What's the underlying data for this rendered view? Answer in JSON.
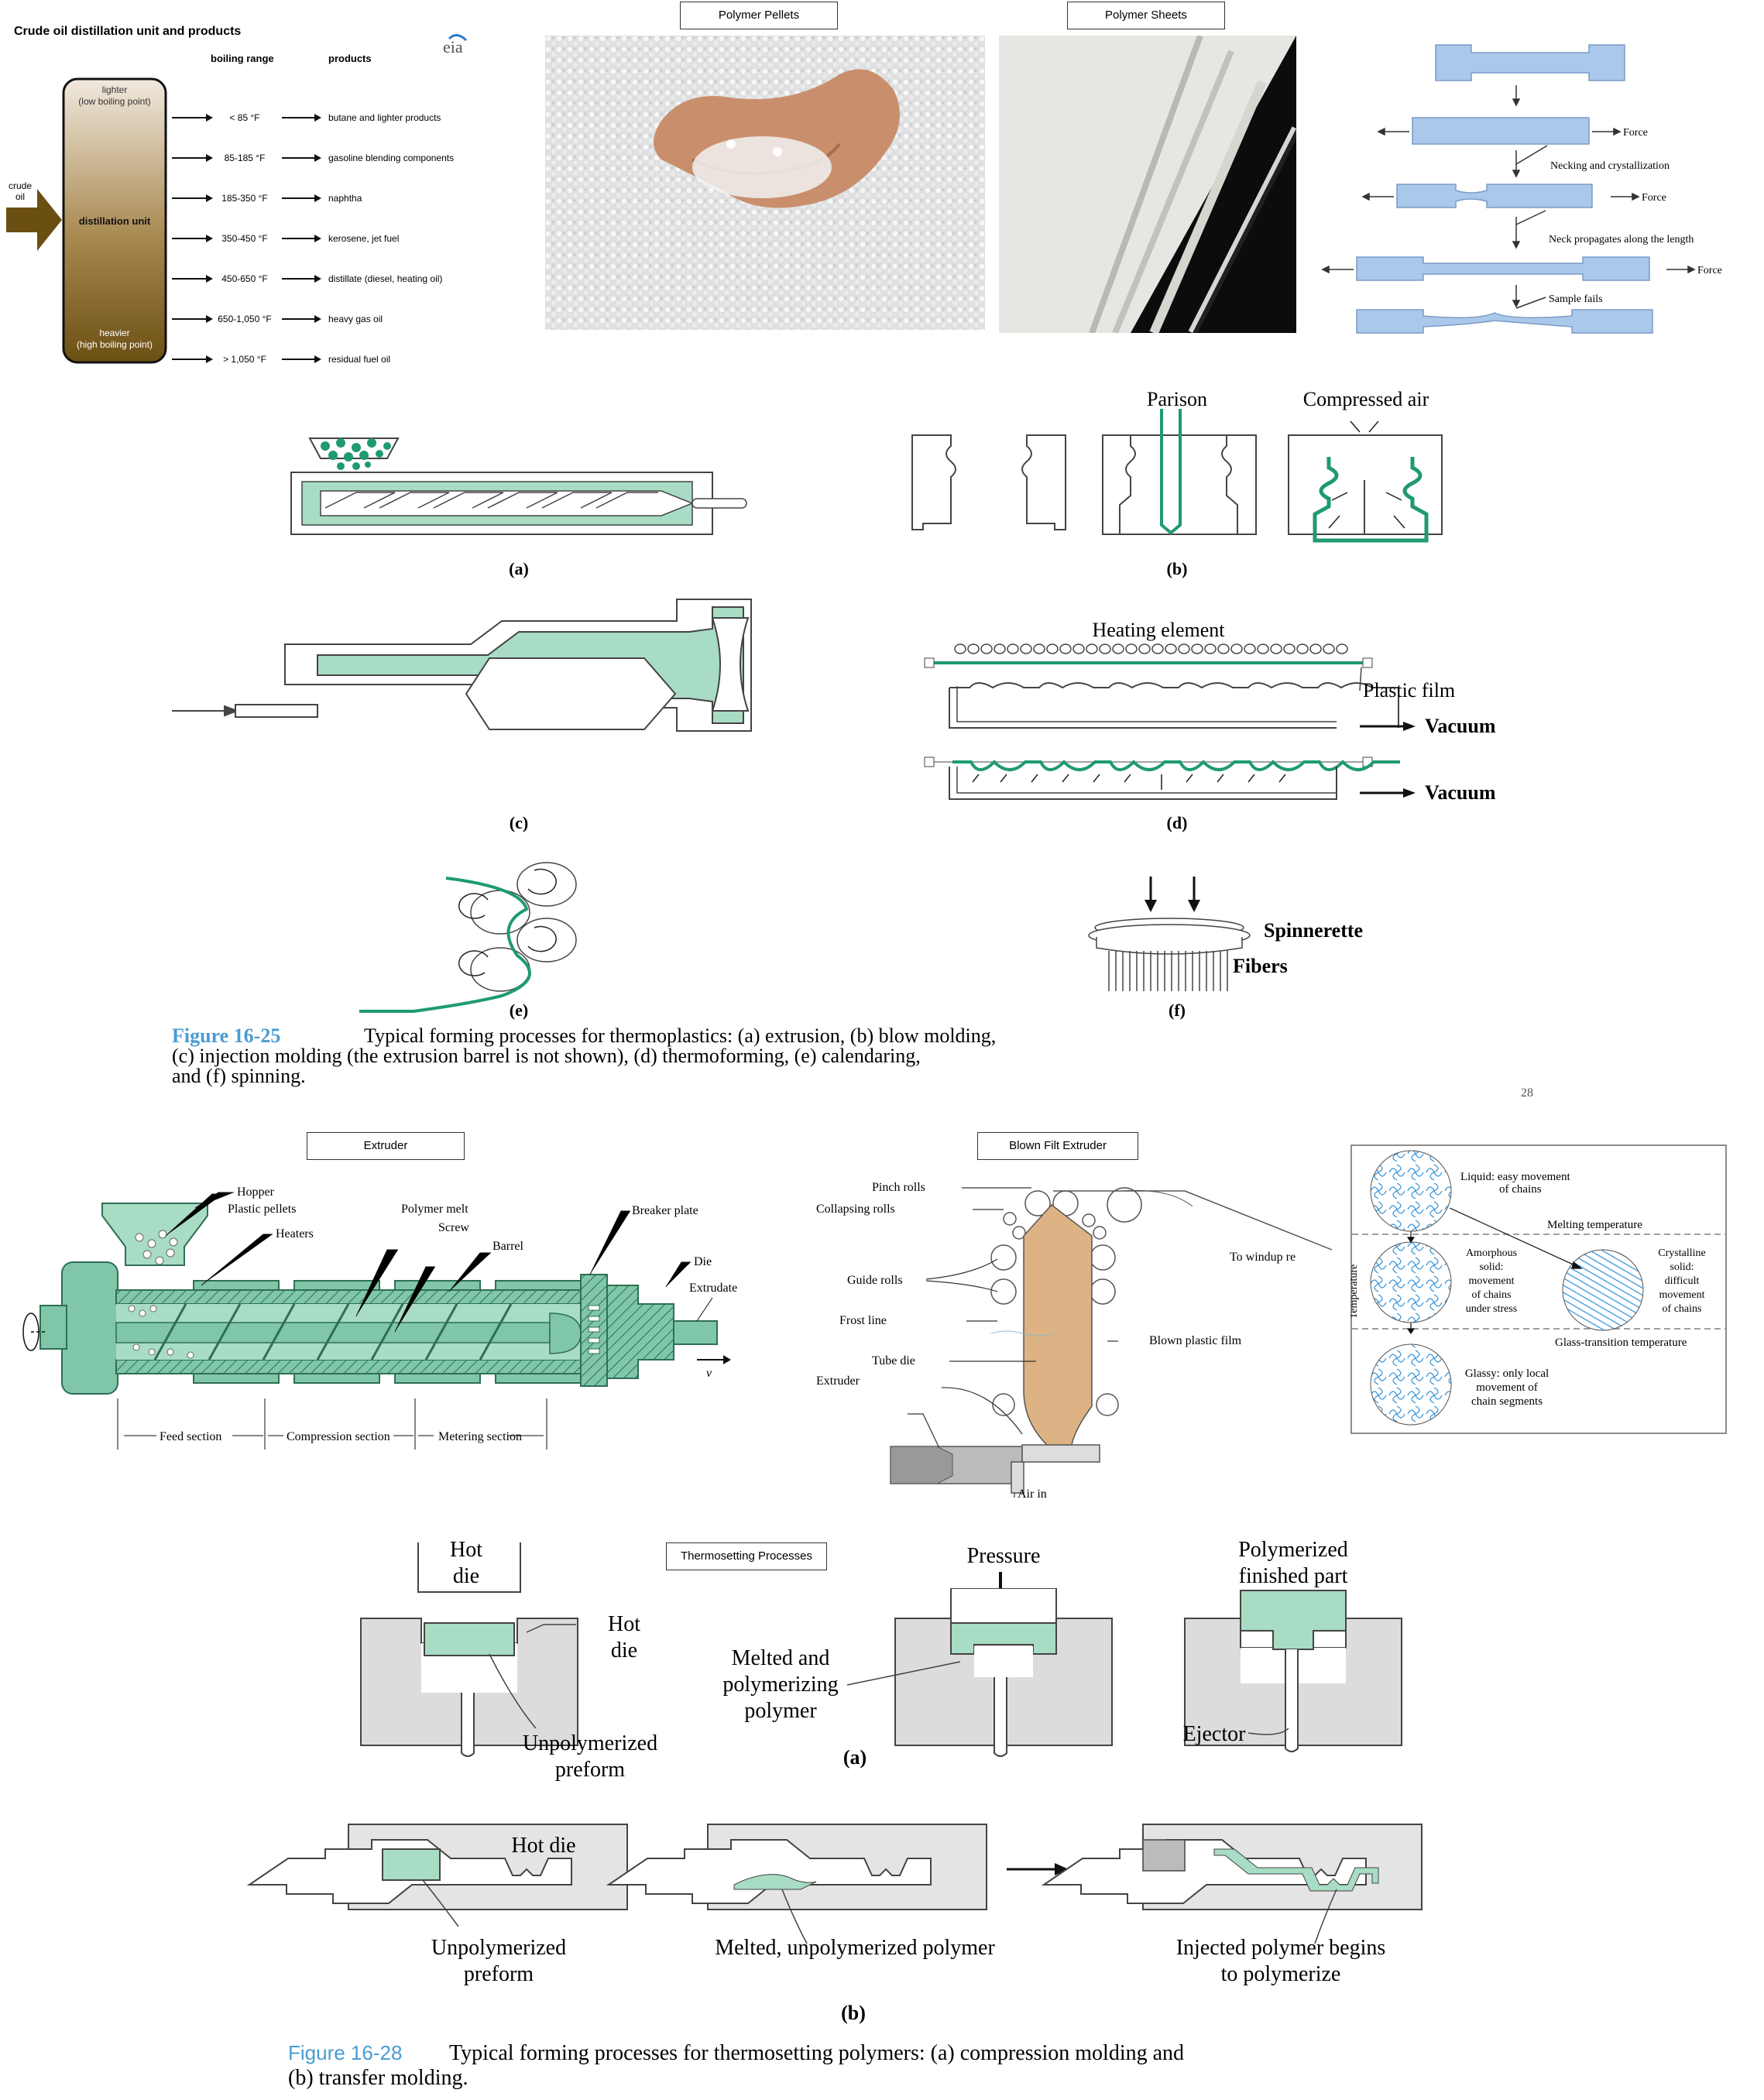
{
  "distillation": {
    "title": "Crude oil distillation  unit and products",
    "col_boiling": "boiling range",
    "col_products": "products",
    "logo": "eia",
    "input_label": [
      "crude",
      "oil"
    ],
    "unit_top": [
      "lighter",
      "(low boiling point)"
    ],
    "unit_mid": "distillation unit",
    "unit_bottom": [
      "heavier",
      "(high boiling point)"
    ],
    "rows": [
      {
        "range": "< 85 °F",
        "product": "butane and lighter products"
      },
      {
        "range": "85-185 °F",
        "product": "gasoline blending components"
      },
      {
        "range": "185-350 °F",
        "product": "naphtha"
      },
      {
        "range": "350-450 °F",
        "product": "kerosene, jet fuel"
      },
      {
        "range": "450-650 °F",
        "product": "distillate (diesel, heating oil)"
      },
      {
        "range": "650-1,050 °F",
        "product": "heavy gas oil"
      },
      {
        "range": "> 1,050 °F",
        "product": "residual fuel oil"
      }
    ]
  },
  "photos": {
    "pellets_label": "Polymer Pellets",
    "sheets_label": "Polymer Sheets"
  },
  "tensile": {
    "force": "Force",
    "necking": "Necking and crystallization",
    "propagates": "Neck propagates along the length",
    "fails": "Sample fails"
  },
  "fig25": {
    "parison": "Parison",
    "compressed_air": "Compressed air",
    "heating_element": "Heating element",
    "plastic_film": "Plastic film",
    "vacuum": "Vacuum",
    "spinnerette": "Spinnerette",
    "fibers": "Fibers",
    "labels": [
      "(a)",
      "(b)",
      "(c)",
      "(d)",
      "(e)",
      "(f)"
    ],
    "caption_num": "Figure 16-25",
    "caption_lines": [
      "Typical forming processes for thermoplastics: (a) extrusion, (b) blow molding,",
      "(c) injection molding (the extrusion barrel is not shown), (d) thermoforming, (e) calendaring,",
      "and (f) spinning."
    ],
    "page_num": "28"
  },
  "extruder": {
    "title": "Extruder",
    "hopper": "Hopper",
    "pellets": "Plastic pellets",
    "heaters": "Heaters",
    "melt": "Polymer melt",
    "screw": "Screw",
    "barrel": "Barrel",
    "breaker": "Breaker plate",
    "die": "Die",
    "extrudate": "Extrudate",
    "v": "v",
    "feed": "Feed section",
    "compression": "Compression section",
    "metering": "Metering section"
  },
  "blown": {
    "title": "Blown Filt Extruder",
    "pinch": "Pinch rolls",
    "collapsing": "Collapsing rolls",
    "guide": "Guide rolls",
    "frost": "Frost line",
    "tube_die": "Tube die",
    "extruder": "Extruder",
    "windup": "To windup re",
    "film": "Blown plastic film",
    "air": "Air in"
  },
  "phase": {
    "liquid": [
      "Liquid: easy movement",
      "of chains"
    ],
    "melting": "Melting temperature",
    "amorphous": [
      "Amorphous",
      "solid:",
      "movement",
      "of chains",
      "under stress"
    ],
    "crystalline": [
      "Crystalline",
      "solid:",
      "difficult",
      "movement",
      "of chains"
    ],
    "glass_t": "Glass-transition temperature",
    "glassy": [
      "Glassy: only local",
      "movement of",
      "chain segments"
    ],
    "axis": "Temperature"
  },
  "thermoset": {
    "title": "Thermosetting Processes",
    "hot_die_top": [
      "Hot",
      "die"
    ],
    "hot_die_side": [
      "Hot",
      "die"
    ],
    "unpoly": [
      "Unpolymerized",
      "preform"
    ],
    "pressure": "Pressure",
    "melted_poly": [
      "Melted and",
      "polymerizing",
      "polymer"
    ],
    "finished": [
      "Polymerized",
      "finished part"
    ],
    "ejector": "Ejector",
    "label_a": "(a)",
    "hot_die_b": "Hot die",
    "unpoly_b": [
      "Unpolymerized",
      "preform"
    ],
    "melted_b": "Melted, unpolymerized polymer",
    "injected_b": [
      "Injected polymer begins",
      "to polymerize"
    ],
    "label_b": "(b)",
    "caption_num": "Figure 16-28",
    "caption_lines": [
      "Typical forming processes for thermosetting polymers: (a) compression molding and",
      "(b) transfer molding."
    ]
  },
  "colors": {
    "green": "#a8dcc4",
    "dark_green": "#1f9a72",
    "blue_sample": "#a9c8ea",
    "brown_top": "#e7dccb",
    "brown_bottom": "#6b4f12",
    "caption_blue": "#4a9cd2",
    "tan": "#ddb284"
  }
}
